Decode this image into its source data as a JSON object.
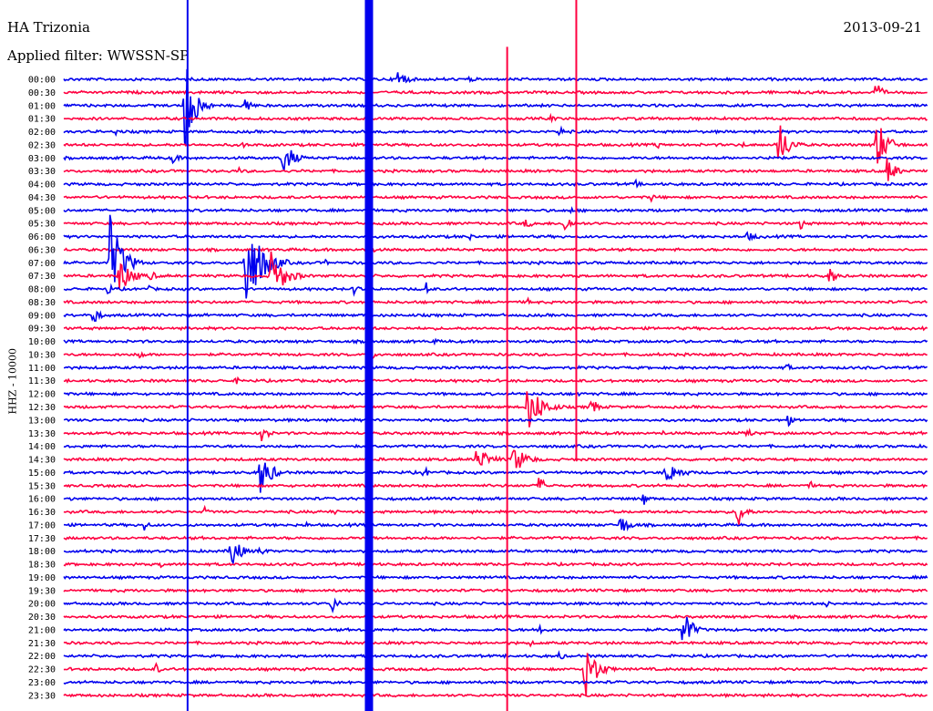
{
  "header": {
    "station": "HA Trizonia",
    "filter": "Applied filter: WWSSN-SP",
    "date": "2013-09-21"
  },
  "colors": {
    "trace_a": "#0000ee",
    "trace_b": "#ff0040",
    "background": "#ffffff"
  },
  "chart_data": {
    "type": "line",
    "title": "HA Trizonia",
    "subtitle": "Applied filter: WWSSN-SP",
    "date": "2013-09-21",
    "ylabel": "HHZ - 10000",
    "xlabel": "",
    "trace_minutes": 30,
    "row_labels": [
      "00:00",
      "00:30",
      "01:00",
      "01:30",
      "02:00",
      "02:30",
      "03:00",
      "03:30",
      "04:00",
      "04:30",
      "05:00",
      "05:30",
      "06:00",
      "06:30",
      "07:00",
      "07:30",
      "08:00",
      "08:30",
      "09:00",
      "09:30",
      "10:00",
      "10:30",
      "11:00",
      "11:30",
      "12:00",
      "12:30",
      "13:00",
      "13:30",
      "14:00",
      "14:30",
      "15:00",
      "15:30",
      "16:00",
      "16:30",
      "17:00",
      "17:30",
      "18:00",
      "18:30",
      "19:00",
      "19:30",
      "20:00",
      "20:30",
      "21:00",
      "21:30",
      "22:00",
      "22:30",
      "23:00",
      "23:30"
    ],
    "row_colors": [
      "blue",
      "red"
    ],
    "events": [
      {
        "row": 0,
        "minute": 11.6,
        "amplitude": 14,
        "duration": 0.8
      },
      {
        "row": 0,
        "minute": 14.1,
        "amplitude": 5,
        "duration": 0.5
      },
      {
        "row": 1,
        "minute": 28.2,
        "amplitude": 12,
        "duration": 0.7
      },
      {
        "row": 2,
        "minute": 4.2,
        "amplitude": 55,
        "duration": 1.0
      },
      {
        "row": 2,
        "minute": 6.3,
        "amplitude": 14,
        "duration": 0.5
      },
      {
        "row": 3,
        "minute": 16.9,
        "amplitude": 4,
        "duration": 0.8
      },
      {
        "row": 4,
        "minute": 17.2,
        "amplitude": 10,
        "duration": 0.4
      },
      {
        "row": 4,
        "minute": 1.8,
        "amplitude": 5,
        "duration": 0.3
      },
      {
        "row": 5,
        "minute": 24.8,
        "amplitude": 30,
        "duration": 1.0
      },
      {
        "row": 5,
        "minute": 28.2,
        "amplitude": 32,
        "duration": 1.1
      },
      {
        "row": 5,
        "minute": 6.2,
        "amplitude": 6,
        "duration": 0.3
      },
      {
        "row": 5,
        "minute": 20.6,
        "amplitude": 5,
        "duration": 0.5
      },
      {
        "row": 5,
        "minute": 23.6,
        "amplitude": 4,
        "duration": 0.4
      },
      {
        "row": 6,
        "minute": 7.6,
        "amplitude": 22,
        "duration": 1.0
      },
      {
        "row": 6,
        "minute": 3.8,
        "amplitude": 10,
        "duration": 0.5
      },
      {
        "row": 6,
        "minute": 24.5,
        "amplitude": 6,
        "duration": 0.8
      },
      {
        "row": 7,
        "minute": 28.6,
        "amplitude": 18,
        "duration": 0.8
      },
      {
        "row": 7,
        "minute": 6.1,
        "amplitude": 5,
        "duration": 0.3
      },
      {
        "row": 8,
        "minute": 19.8,
        "amplitude": 7,
        "duration": 0.5
      },
      {
        "row": 9,
        "minute": 20.4,
        "amplitude": 5,
        "duration": 0.5
      },
      {
        "row": 10,
        "minute": 17.6,
        "amplitude": 5,
        "duration": 0.4
      },
      {
        "row": 11,
        "minute": 17.4,
        "amplitude": 14,
        "duration": 0.6
      },
      {
        "row": 11,
        "minute": 16.0,
        "amplitude": 5,
        "duration": 1.3
      },
      {
        "row": 11,
        "minute": 25.6,
        "amplitude": 12,
        "duration": 0.3
      },
      {
        "row": 12,
        "minute": 14.1,
        "amplitude": 5,
        "duration": 0.4
      },
      {
        "row": 12,
        "minute": 23.7,
        "amplitude": 5,
        "duration": 1.5
      },
      {
        "row": 13,
        "minute": 10.5,
        "amplitude": 5,
        "duration": 1.2
      },
      {
        "row": 14,
        "minute": 1.6,
        "amplitude": 55,
        "duration": 1.2
      },
      {
        "row": 14,
        "minute": 6.3,
        "amplitude": 58,
        "duration": 1.6
      },
      {
        "row": 14,
        "minute": 9.1,
        "amplitude": 4,
        "duration": 0.3
      },
      {
        "row": 15,
        "minute": 1.9,
        "amplitude": 22,
        "duration": 1.2
      },
      {
        "row": 15,
        "minute": 3.0,
        "amplitude": 8,
        "duration": 0.6
      },
      {
        "row": 15,
        "minute": 7.2,
        "amplitude": 28,
        "duration": 1.4
      },
      {
        "row": 15,
        "minute": 26.6,
        "amplitude": 12,
        "duration": 0.6
      },
      {
        "row": 16,
        "minute": 1.5,
        "amplitude": 10,
        "duration": 0.5
      },
      {
        "row": 16,
        "minute": 2.9,
        "amplitude": 6,
        "duration": 0.4
      },
      {
        "row": 16,
        "minute": 10.1,
        "amplitude": 10,
        "duration": 0.5
      },
      {
        "row": 16,
        "minute": 12.6,
        "amplitude": 10,
        "duration": 0.4
      },
      {
        "row": 17,
        "minute": 16.1,
        "amplitude": 5,
        "duration": 0.4
      },
      {
        "row": 18,
        "minute": 1.0,
        "amplitude": 14,
        "duration": 0.6
      },
      {
        "row": 20,
        "minute": 12.8,
        "amplitude": 4,
        "duration": 0.8
      },
      {
        "row": 21,
        "minute": 2.6,
        "amplitude": 10,
        "duration": 0.4
      },
      {
        "row": 21,
        "minute": 10.6,
        "amplitude": 8,
        "duration": 0.8
      },
      {
        "row": 22,
        "minute": 25.1,
        "amplitude": 7,
        "duration": 0.4
      },
      {
        "row": 23,
        "minute": 6.0,
        "amplitude": 6,
        "duration": 0.3
      },
      {
        "row": 24,
        "minute": 17.8,
        "amplitude": 5,
        "duration": 0.3
      },
      {
        "row": 25,
        "minute": 16.1,
        "amplitude": 30,
        "duration": 1.4
      },
      {
        "row": 25,
        "minute": 18.3,
        "amplitude": 14,
        "duration": 0.6
      },
      {
        "row": 26,
        "minute": 25.1,
        "amplitude": 10,
        "duration": 0.5
      },
      {
        "row": 27,
        "minute": 6.9,
        "amplitude": 20,
        "duration": 0.5
      },
      {
        "row": 27,
        "minute": 23.7,
        "amplitude": 6,
        "duration": 0.8
      },
      {
        "row": 27,
        "minute": 20.8,
        "amplitude": 4,
        "duration": 0.3
      },
      {
        "row": 28,
        "minute": 22.1,
        "amplitude": 5,
        "duration": 0.3
      },
      {
        "row": 29,
        "minute": 14.3,
        "amplitude": 15,
        "duration": 1.4
      },
      {
        "row": 29,
        "minute": 15.6,
        "amplitude": 18,
        "duration": 1.3
      },
      {
        "row": 30,
        "minute": 6.8,
        "amplitude": 26,
        "duration": 1.1
      },
      {
        "row": 30,
        "minute": 12.5,
        "amplitude": 8,
        "duration": 0.5
      },
      {
        "row": 30,
        "minute": 20.9,
        "amplitude": 14,
        "duration": 1.4
      },
      {
        "row": 31,
        "minute": 16.5,
        "amplitude": 10,
        "duration": 0.9
      },
      {
        "row": 31,
        "minute": 25.9,
        "amplitude": 8,
        "duration": 0.3
      },
      {
        "row": 32,
        "minute": 20.1,
        "amplitude": 10,
        "duration": 0.5
      },
      {
        "row": 32,
        "minute": 0.2,
        "amplitude": 4,
        "duration": 0.3
      },
      {
        "row": 33,
        "minute": 4.9,
        "amplitude": 7,
        "duration": 0.4
      },
      {
        "row": 33,
        "minute": 9.3,
        "amplitude": 6,
        "duration": 0.5
      },
      {
        "row": 33,
        "minute": 23.4,
        "amplitude": 20,
        "duration": 0.7
      },
      {
        "row": 34,
        "minute": 2.8,
        "amplitude": 8,
        "duration": 0.4
      },
      {
        "row": 34,
        "minute": 8.4,
        "amplitude": 5,
        "duration": 0.3
      },
      {
        "row": 34,
        "minute": 19.3,
        "amplitude": 12,
        "duration": 1.0
      },
      {
        "row": 36,
        "minute": 5.8,
        "amplitude": 26,
        "duration": 0.8
      },
      {
        "row": 36,
        "minute": 6.8,
        "amplitude": 10,
        "duration": 0.5
      },
      {
        "row": 37,
        "minute": 3.4,
        "amplitude": 6,
        "duration": 0.3
      },
      {
        "row": 40,
        "minute": 9.3,
        "amplitude": 12,
        "duration": 0.6
      },
      {
        "row": 40,
        "minute": 26.5,
        "amplitude": 6,
        "duration": 0.3
      },
      {
        "row": 42,
        "minute": 16.5,
        "amplitude": 12,
        "duration": 0.5
      },
      {
        "row": 42,
        "minute": 21.5,
        "amplitude": 30,
        "duration": 0.8
      },
      {
        "row": 43,
        "minute": 16.2,
        "amplitude": 5,
        "duration": 0.3
      },
      {
        "row": 44,
        "minute": 17.2,
        "amplitude": 8,
        "duration": 0.4
      },
      {
        "row": 45,
        "minute": 3.2,
        "amplitude": 8,
        "duration": 0.4
      },
      {
        "row": 45,
        "minute": 18.1,
        "amplitude": 35,
        "duration": 1.1
      }
    ],
    "spikes": [
      {
        "minute": 4.3,
        "from_row": 0,
        "to_row": 47,
        "color": "blue"
      },
      {
        "minute": 10.6,
        "from_row": 0,
        "to_row": 47,
        "color": "blue",
        "thick": true
      },
      {
        "minute": 15.4,
        "from_row": 1,
        "to_row": 47,
        "color": "red"
      },
      {
        "minute": 17.8,
        "from_row": 0,
        "to_row": 27,
        "color": "red"
      }
    ]
  }
}
